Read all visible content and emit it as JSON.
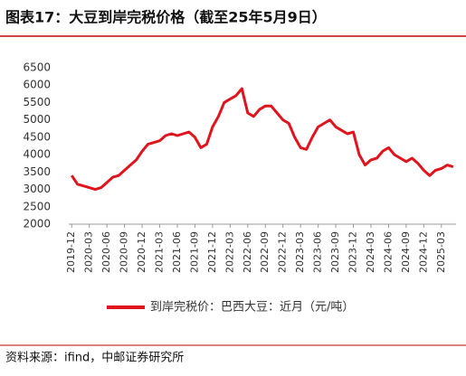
{
  "chart_data": {
    "type": "line",
    "title": "图表17：大豆到岸完税价格（截至25年5月9日）",
    "x": [
      "2019-12",
      "2020-01",
      "2020-02",
      "2020-03",
      "2020-04",
      "2020-05",
      "2020-06",
      "2020-07",
      "2020-08",
      "2020-09",
      "2020-10",
      "2020-11",
      "2020-12",
      "2021-01",
      "2021-02",
      "2021-03",
      "2021-04",
      "2021-05",
      "2021-06",
      "2021-07",
      "2021-08",
      "2021-09",
      "2021-10",
      "2021-11",
      "2021-12",
      "2022-01",
      "2022-02",
      "2022-03",
      "2022-04",
      "2022-05",
      "2022-06",
      "2022-07",
      "2022-08",
      "2022-09",
      "2022-10",
      "2022-11",
      "2022-12",
      "2023-01",
      "2023-02",
      "2023-03",
      "2023-04",
      "2023-05",
      "2023-06",
      "2023-07",
      "2023-08",
      "2023-09",
      "2023-10",
      "2023-11",
      "2023-12",
      "2024-01",
      "2024-02",
      "2024-03",
      "2024-04",
      "2024-05",
      "2024-06",
      "2024-07",
      "2024-08",
      "2024-09",
      "2024-10",
      "2024-11",
      "2024-12",
      "2025-01",
      "2025-02",
      "2025-03",
      "2025-04",
      "2025-05"
    ],
    "series": [
      {
        "name": "到岸完税价：巴西大豆：近月（元/吨）",
        "color": "#e0141c",
        "values": [
          3400,
          3150,
          3100,
          3050,
          3000,
          3050,
          3200,
          3350,
          3400,
          3550,
          3700,
          3850,
          4100,
          4300,
          4350,
          4400,
          4550,
          4600,
          4550,
          4600,
          4650,
          4500,
          4200,
          4300,
          4800,
          5100,
          5500,
          5600,
          5700,
          5900,
          5200,
          5100,
          5300,
          5400,
          5400,
          5200,
          5000,
          4900,
          4500,
          4200,
          4150,
          4500,
          4800,
          4900,
          5000,
          4800,
          4700,
          4600,
          4650,
          4000,
          3700,
          3850,
          3900,
          4100,
          4200,
          4000,
          3900,
          3800,
          3900,
          3750,
          3550,
          3400,
          3550,
          3600,
          3700,
          3650
        ]
      }
    ],
    "xticks": [
      "2019-12",
      "2020-03",
      "2020-06",
      "2020-09",
      "2020-12",
      "2021-03",
      "2021-06",
      "2021-09",
      "2021-12",
      "2022-03",
      "2022-06",
      "2022-09",
      "2022-12",
      "2023-03",
      "2023-06",
      "2023-09",
      "2023-12",
      "2024-03",
      "2024-06",
      "2024-09",
      "2024-12",
      "2025-03"
    ],
    "ylim": [
      2000,
      6500
    ],
    "yticks": [
      2000,
      2500,
      3000,
      3500,
      4000,
      4500,
      5000,
      5500,
      6000,
      6500
    ],
    "grid": false,
    "source": "资料来源：ifind，中邮证券研究所"
  }
}
